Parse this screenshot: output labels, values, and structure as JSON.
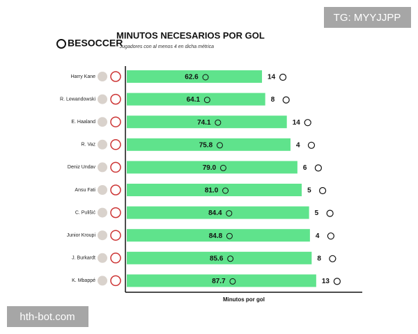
{
  "chart_data": {
    "type": "bar",
    "orientation": "horizontal",
    "brand": "BESOCCER",
    "title": "MINUTOS NECESARIOS POR GOL",
    "subtitle": "* Jugadores con al menos 4 en dicha métrica",
    "x_label": "Minutos por gol",
    "categories": [
      "Harry Kane",
      "R. Lewandowski",
      "E. Haaland",
      "R. Vaz",
      "Deniz Undav",
      "Ansu Fati",
      "C. Pulišić",
      "Junior Kroupi",
      "J. Burkardt",
      "K. Mbappé"
    ],
    "values": [
      62.6,
      64.1,
      74.1,
      75.8,
      79.0,
      81.0,
      84.4,
      84.8,
      85.6,
      87.7
    ],
    "value_labels": [
      "62.6",
      "64.1",
      "74.1",
      "75.8",
      "79.0",
      "81.0",
      "84.4",
      "84.8",
      "85.6",
      "87.7"
    ],
    "goals": [
      14,
      8,
      14,
      4,
      6,
      5,
      5,
      4,
      8,
      13
    ],
    "color": "#5fe38c",
    "xlim": [
      0,
      110
    ],
    "watermarks": [
      "TG: MYYJJPP",
      "hth-bot.com"
    ]
  }
}
